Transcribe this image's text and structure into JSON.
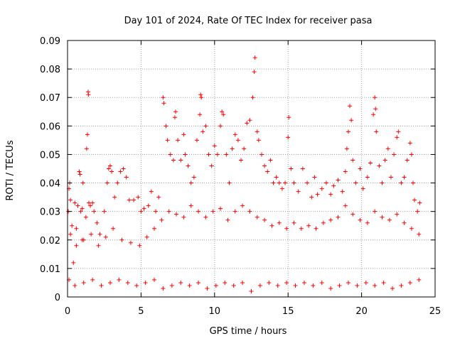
{
  "chart_data": {
    "type": "scatter",
    "title": "Day 101 of 2024, Rate Of TEC Index for receiver pasa",
    "xlabel": "GPS time / hours",
    "ylabel": "ROTI / TECUs",
    "xlim": [
      0,
      25
    ],
    "ylim": [
      0,
      0.09
    ],
    "xticks": [
      "0",
      "5",
      "10",
      "15",
      "20",
      "25"
    ],
    "yticks": [
      "0",
      "0.01",
      "0.02",
      "0.03",
      "0.04",
      "0.05",
      "0.06",
      "0.07",
      "0.08",
      "0.09"
    ],
    "grid": true,
    "marker": "+",
    "series": [
      {
        "name": "ROTI",
        "color": "#ff0000",
        "points": [
          [
            0.05,
            0.03
          ],
          [
            0.1,
            0.038
          ],
          [
            0.15,
            0.04
          ],
          [
            0.2,
            0.034
          ],
          [
            0.3,
            0.025
          ],
          [
            0.4,
            0.012
          ],
          [
            0.5,
            0.033
          ],
          [
            0.6,
            0.024
          ],
          [
            0.7,
            0.032
          ],
          [
            0.8,
            0.044
          ],
          [
            0.85,
            0.043
          ],
          [
            0.9,
            0.03
          ],
          [
            1.0,
            0.031
          ],
          [
            1.05,
            0.04
          ],
          [
            1.1,
            0.02
          ],
          [
            1.25,
            0.028
          ],
          [
            1.3,
            0.052
          ],
          [
            1.35,
            0.057
          ],
          [
            1.4,
            0.072
          ],
          [
            1.42,
            0.071
          ],
          [
            1.45,
            0.033
          ],
          [
            1.55,
            0.032
          ],
          [
            1.7,
            0.033
          ],
          [
            1.8,
            0.03
          ],
          [
            2.0,
            0.026
          ],
          [
            2.2,
            0.022
          ],
          [
            2.5,
            0.03
          ],
          [
            2.7,
            0.04
          ],
          [
            2.8,
            0.045
          ],
          [
            2.9,
            0.046
          ],
          [
            3.0,
            0.044
          ],
          [
            3.2,
            0.035
          ],
          [
            3.4,
            0.04
          ],
          [
            3.6,
            0.044
          ],
          [
            3.8,
            0.045
          ],
          [
            4.0,
            0.042
          ],
          [
            4.2,
            0.034
          ],
          [
            4.5,
            0.034
          ],
          [
            4.8,
            0.035
          ],
          [
            5.0,
            0.03
          ],
          [
            5.2,
            0.031
          ],
          [
            5.5,
            0.032
          ],
          [
            5.7,
            0.037
          ],
          [
            6.0,
            0.03
          ],
          [
            6.2,
            0.035
          ],
          [
            6.5,
            0.07
          ],
          [
            6.55,
            0.068
          ],
          [
            6.7,
            0.06
          ],
          [
            6.8,
            0.055
          ],
          [
            7.0,
            0.05
          ],
          [
            7.2,
            0.048
          ],
          [
            7.3,
            0.063
          ],
          [
            7.35,
            0.065
          ],
          [
            7.5,
            0.055
          ],
          [
            7.7,
            0.048
          ],
          [
            7.9,
            0.057
          ],
          [
            8.0,
            0.05
          ],
          [
            8.2,
            0.046
          ],
          [
            8.4,
            0.04
          ],
          [
            8.6,
            0.042
          ],
          [
            8.8,
            0.055
          ],
          [
            9.0,
            0.064
          ],
          [
            9.05,
            0.071
          ],
          [
            9.1,
            0.07
          ],
          [
            9.2,
            0.058
          ],
          [
            9.4,
            0.06
          ],
          [
            9.6,
            0.05
          ],
          [
            9.8,
            0.046
          ],
          [
            10.0,
            0.053
          ],
          [
            10.2,
            0.05
          ],
          [
            10.4,
            0.06
          ],
          [
            10.5,
            0.065
          ],
          [
            10.6,
            0.064
          ],
          [
            10.8,
            0.05
          ],
          [
            11.0,
            0.04
          ],
          [
            11.2,
            0.052
          ],
          [
            11.4,
            0.057
          ],
          [
            11.6,
            0.055
          ],
          [
            11.8,
            0.048
          ],
          [
            12.0,
            0.052
          ],
          [
            12.2,
            0.061
          ],
          [
            12.4,
            0.062
          ],
          [
            12.6,
            0.07
          ],
          [
            12.7,
            0.079
          ],
          [
            12.75,
            0.084
          ],
          [
            12.9,
            0.058
          ],
          [
            13.0,
            0.055
          ],
          [
            13.2,
            0.05
          ],
          [
            13.4,
            0.046
          ],
          [
            13.6,
            0.044
          ],
          [
            13.8,
            0.048
          ],
          [
            14.0,
            0.04
          ],
          [
            14.2,
            0.042
          ],
          [
            14.4,
            0.04
          ],
          [
            14.6,
            0.038
          ],
          [
            14.8,
            0.04
          ],
          [
            15.0,
            0.056
          ],
          [
            15.05,
            0.063
          ],
          [
            15.2,
            0.045
          ],
          [
            15.4,
            0.04
          ],
          [
            15.7,
            0.037
          ],
          [
            16.0,
            0.045
          ],
          [
            16.3,
            0.04
          ],
          [
            16.6,
            0.035
          ],
          [
            16.8,
            0.042
          ],
          [
            17.0,
            0.036
          ],
          [
            17.3,
            0.038
          ],
          [
            17.6,
            0.04
          ],
          [
            17.9,
            0.036
          ],
          [
            18.1,
            0.039
          ],
          [
            18.4,
            0.041
          ],
          [
            18.7,
            0.037
          ],
          [
            18.9,
            0.044
          ],
          [
            19.0,
            0.052
          ],
          [
            19.1,
            0.058
          ],
          [
            19.2,
            0.067
          ],
          [
            19.3,
            0.062
          ],
          [
            19.4,
            0.048
          ],
          [
            19.6,
            0.04
          ],
          [
            19.9,
            0.045
          ],
          [
            20.1,
            0.038
          ],
          [
            20.4,
            0.042
          ],
          [
            20.6,
            0.047
          ],
          [
            20.8,
            0.064
          ],
          [
            20.9,
            0.07
          ],
          [
            20.95,
            0.066
          ],
          [
            21.0,
            0.058
          ],
          [
            21.2,
            0.046
          ],
          [
            21.4,
            0.04
          ],
          [
            21.6,
            0.048
          ],
          [
            21.8,
            0.052
          ],
          [
            22.0,
            0.042
          ],
          [
            22.2,
            0.05
          ],
          [
            22.4,
            0.056
          ],
          [
            22.5,
            0.058
          ],
          [
            22.7,
            0.04
          ],
          [
            22.9,
            0.042
          ],
          [
            23.1,
            0.048
          ],
          [
            23.3,
            0.054
          ],
          [
            23.4,
            0.05
          ],
          [
            23.5,
            0.04
          ],
          [
            23.6,
            0.034
          ],
          [
            23.8,
            0.03
          ],
          [
            23.95,
            0.033
          ],
          [
            0.2,
            0.022
          ],
          [
            0.6,
            0.018
          ],
          [
            1.0,
            0.02
          ],
          [
            1.6,
            0.022
          ],
          [
            2.1,
            0.018
          ],
          [
            2.6,
            0.021
          ],
          [
            3.1,
            0.024
          ],
          [
            3.7,
            0.02
          ],
          [
            4.3,
            0.019
          ],
          [
            4.9,
            0.018
          ],
          [
            5.4,
            0.021
          ],
          [
            5.9,
            0.024
          ],
          [
            6.4,
            0.027
          ],
          [
            6.9,
            0.03
          ],
          [
            7.4,
            0.029
          ],
          [
            7.9,
            0.028
          ],
          [
            8.4,
            0.032
          ],
          [
            8.9,
            0.03
          ],
          [
            9.4,
            0.028
          ],
          [
            9.9,
            0.03
          ],
          [
            10.4,
            0.031
          ],
          [
            10.9,
            0.027
          ],
          [
            11.4,
            0.03
          ],
          [
            11.9,
            0.032
          ],
          [
            12.4,
            0.03
          ],
          [
            12.9,
            0.028
          ],
          [
            13.4,
            0.027
          ],
          [
            13.9,
            0.025
          ],
          [
            14.4,
            0.026
          ],
          [
            14.9,
            0.024
          ],
          [
            15.4,
            0.026
          ],
          [
            15.9,
            0.024
          ],
          [
            16.4,
            0.025
          ],
          [
            16.9,
            0.024
          ],
          [
            17.4,
            0.026
          ],
          [
            17.9,
            0.027
          ],
          [
            18.4,
            0.028
          ],
          [
            18.9,
            0.032
          ],
          [
            19.4,
            0.029
          ],
          [
            19.9,
            0.027
          ],
          [
            20.4,
            0.026
          ],
          [
            20.9,
            0.03
          ],
          [
            21.4,
            0.028
          ],
          [
            21.9,
            0.027
          ],
          [
            22.4,
            0.029
          ],
          [
            22.9,
            0.026
          ],
          [
            23.4,
            0.024
          ],
          [
            23.9,
            0.022
          ],
          [
            0.1,
            0.006
          ],
          [
            0.5,
            0.004
          ],
          [
            1.1,
            0.005
          ],
          [
            1.7,
            0.006
          ],
          [
            2.3,
            0.004
          ],
          [
            2.9,
            0.005
          ],
          [
            3.5,
            0.006
          ],
          [
            4.1,
            0.005
          ],
          [
            4.7,
            0.004
          ],
          [
            5.3,
            0.005
          ],
          [
            5.9,
            0.006
          ],
          [
            6.5,
            0.003
          ],
          [
            7.1,
            0.004
          ],
          [
            7.7,
            0.005
          ],
          [
            8.3,
            0.004
          ],
          [
            8.9,
            0.005
          ],
          [
            9.5,
            0.003
          ],
          [
            10.1,
            0.004
          ],
          [
            10.7,
            0.005
          ],
          [
            11.3,
            0.004
          ],
          [
            11.9,
            0.005
          ],
          [
            12.5,
            0.002
          ],
          [
            13.1,
            0.004
          ],
          [
            13.7,
            0.005
          ],
          [
            14.3,
            0.004
          ],
          [
            14.9,
            0.005
          ],
          [
            15.5,
            0.004
          ],
          [
            16.1,
            0.005
          ],
          [
            16.7,
            0.004
          ],
          [
            17.3,
            0.005
          ],
          [
            17.9,
            0.003
          ],
          [
            18.5,
            0.004
          ],
          [
            19.1,
            0.005
          ],
          [
            19.7,
            0.004
          ],
          [
            20.3,
            0.005
          ],
          [
            20.9,
            0.004
          ],
          [
            21.5,
            0.005
          ],
          [
            22.1,
            0.003
          ],
          [
            22.7,
            0.004
          ],
          [
            23.3,
            0.005
          ],
          [
            23.9,
            0.006
          ]
        ]
      }
    ]
  }
}
